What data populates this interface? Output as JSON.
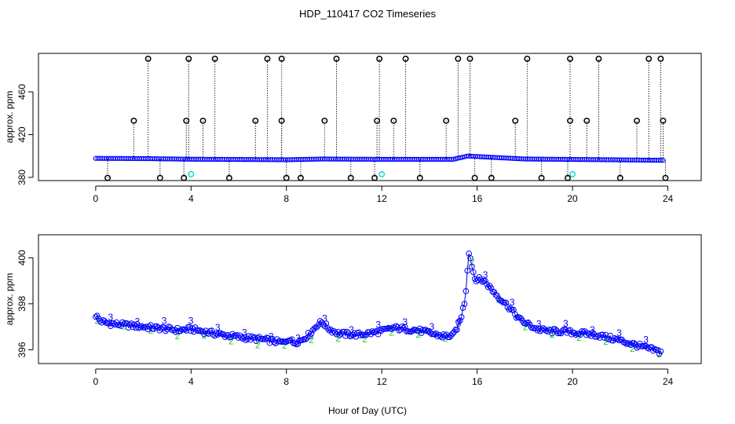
{
  "title": "HDP_110417  CO2 Timeseries",
  "x_axis_label": "Hour of Day (UTC)",
  "chart_data": [
    {
      "type": "scatter",
      "panel": "top",
      "title": "HDP_110417  CO2 Timeseries",
      "xlabel": "",
      "ylabel": "approx. ppm",
      "xlim": [
        -2.4,
        25.4
      ],
      "ylim": [
        377,
        496
      ],
      "xticks": [
        0,
        4,
        8,
        12,
        16,
        20,
        24
      ],
      "yticks": [
        380,
        420,
        460
      ],
      "colors": {
        "black": "#000000",
        "blue": "#0000ff",
        "cyan": "#00d8d8"
      },
      "series": [
        {
          "name": "baseline (blue)",
          "points": [
            [
              0,
              397.8
            ],
            [
              2,
              397.6
            ],
            [
              4,
              397.0
            ],
            [
              6,
              396.8
            ],
            [
              8,
              396.5
            ],
            [
              9.5,
              397.2
            ],
            [
              12,
              396.9
            ],
            [
              15,
              396.9
            ],
            [
              15.6,
              400.0
            ],
            [
              16,
              399.5
            ],
            [
              18,
              397.2
            ],
            [
              20,
              396.8
            ],
            [
              22,
              396.4
            ],
            [
              23.8,
              396.0
            ]
          ]
        },
        {
          "name": "outliers high (black)",
          "points": [
            [
              2.2,
              491
            ],
            [
              3.9,
              491
            ],
            [
              5.0,
              491
            ],
            [
              7.2,
              491
            ],
            [
              7.8,
              491
            ],
            [
              10.1,
              491
            ],
            [
              11.9,
              491
            ],
            [
              13.0,
              491
            ],
            [
              15.2,
              491
            ],
            [
              15.7,
              491
            ],
            [
              18.1,
              491
            ],
            [
              19.9,
              491
            ],
            [
              21.1,
              491
            ],
            [
              23.2,
              491
            ],
            [
              23.7,
              491
            ]
          ]
        },
        {
          "name": "outliers mid (black)",
          "points": [
            [
              1.6,
              433
            ],
            [
              3.8,
              433
            ],
            [
              4.5,
              433
            ],
            [
              6.7,
              433
            ],
            [
              7.8,
              433
            ],
            [
              9.6,
              433
            ],
            [
              11.8,
              433
            ],
            [
              12.5,
              433
            ],
            [
              14.7,
              433
            ],
            [
              17.6,
              433
            ],
            [
              19.9,
              433
            ],
            [
              20.6,
              433
            ],
            [
              22.7,
              433
            ],
            [
              23.8,
              433
            ]
          ]
        },
        {
          "name": "outliers low (black)",
          "points": [
            [
              0.5,
              379.5
            ],
            [
              2.7,
              379.5
            ],
            [
              3.7,
              379.5
            ],
            [
              5.6,
              379.5
            ],
            [
              8.0,
              379.5
            ],
            [
              8.6,
              379.5
            ],
            [
              10.7,
              379.5
            ],
            [
              11.7,
              379.5
            ],
            [
              13.6,
              379.5
            ],
            [
              15.9,
              379.5
            ],
            [
              16.6,
              379.5
            ],
            [
              18.7,
              379.5
            ],
            [
              19.8,
              379.5
            ],
            [
              22.0,
              379.5
            ],
            [
              23.9,
              379.5
            ]
          ]
        },
        {
          "name": "outliers cyan",
          "points": [
            [
              4.0,
              383
            ],
            [
              12.0,
              383
            ],
            [
              20.0,
              383
            ]
          ]
        }
      ]
    },
    {
      "type": "line",
      "panel": "bottom",
      "xlabel": "Hour of Day (UTC)",
      "ylabel": "approx. ppm",
      "xlim": [
        -2.4,
        25.4
      ],
      "ylim": [
        395.4,
        401.0
      ],
      "xticks": [
        0,
        4,
        8,
        12,
        16,
        20,
        24
      ],
      "yticks": [
        396,
        398,
        400
      ],
      "colors": {
        "line": "#0000cc",
        "marker2": "#22cc22",
        "marker3": "#0000ff"
      },
      "marker_labels": [
        "2",
        "3"
      ],
      "series": [
        {
          "name": "CO2",
          "points": [
            [
              0,
              397.5
            ],
            [
              0.2,
              397.25
            ],
            [
              0.5,
              397.15
            ],
            [
              1.0,
              397.1
            ],
            [
              1.5,
              397.05
            ],
            [
              2.0,
              397.0
            ],
            [
              2.5,
              396.95
            ],
            [
              3.0,
              396.9
            ],
            [
              3.5,
              396.85
            ],
            [
              4.0,
              396.9
            ],
            [
              4.5,
              396.8
            ],
            [
              5.0,
              396.7
            ],
            [
              6.0,
              396.55
            ],
            [
              7.0,
              396.45
            ],
            [
              7.6,
              396.35
            ],
            [
              7.9,
              396.3
            ],
            [
              8.1,
              396.5
            ],
            [
              8.3,
              396.3
            ],
            [
              8.6,
              396.4
            ],
            [
              9.0,
              396.7
            ],
            [
              9.3,
              397.1
            ],
            [
              9.5,
              397.2
            ],
            [
              9.8,
              396.9
            ],
            [
              10.2,
              396.7
            ],
            [
              11.0,
              396.65
            ],
            [
              12.0,
              396.8
            ],
            [
              12.5,
              396.95
            ],
            [
              13.5,
              396.85
            ],
            [
              14.5,
              396.6
            ],
            [
              15.0,
              396.6
            ],
            [
              15.3,
              397.3
            ],
            [
              15.5,
              398.2
            ],
            [
              15.65,
              400.3
            ],
            [
              15.9,
              399.1
            ],
            [
              16.3,
              399.0
            ],
            [
              16.8,
              398.4
            ],
            [
              17.3,
              397.9
            ],
            [
              17.8,
              397.3
            ],
            [
              18.5,
              396.9
            ],
            [
              19.0,
              396.8
            ],
            [
              19.5,
              396.8
            ],
            [
              20.0,
              396.75
            ],
            [
              21.0,
              396.65
            ],
            [
              22.0,
              396.4
            ],
            [
              23.0,
              396.1
            ],
            [
              23.7,
              395.9
            ]
          ]
        }
      ]
    }
  ]
}
